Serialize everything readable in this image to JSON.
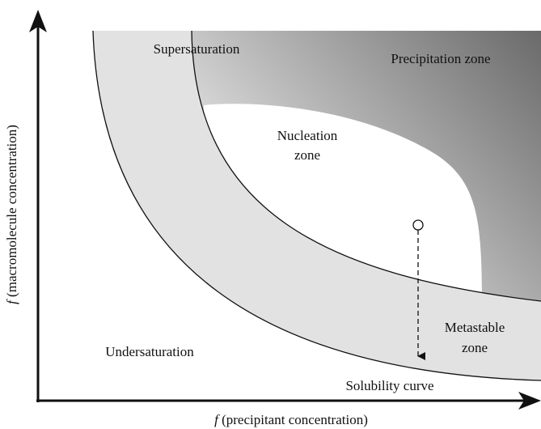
{
  "axes": {
    "x_label": {
      "symbol": "f",
      "text": "(precipitant concentration)"
    },
    "y_label": {
      "symbol": "f",
      "text": "(macromolecule concentration)"
    }
  },
  "regions": {
    "supersaturation": "Supersaturation",
    "precipitation": "Precipitation zone",
    "nucleation": [
      "Nucleation",
      "zone"
    ],
    "metastable": [
      "Metastable",
      "zone"
    ],
    "undersaturation": "Undersaturation",
    "solubility": "Solubility curve"
  }
}
